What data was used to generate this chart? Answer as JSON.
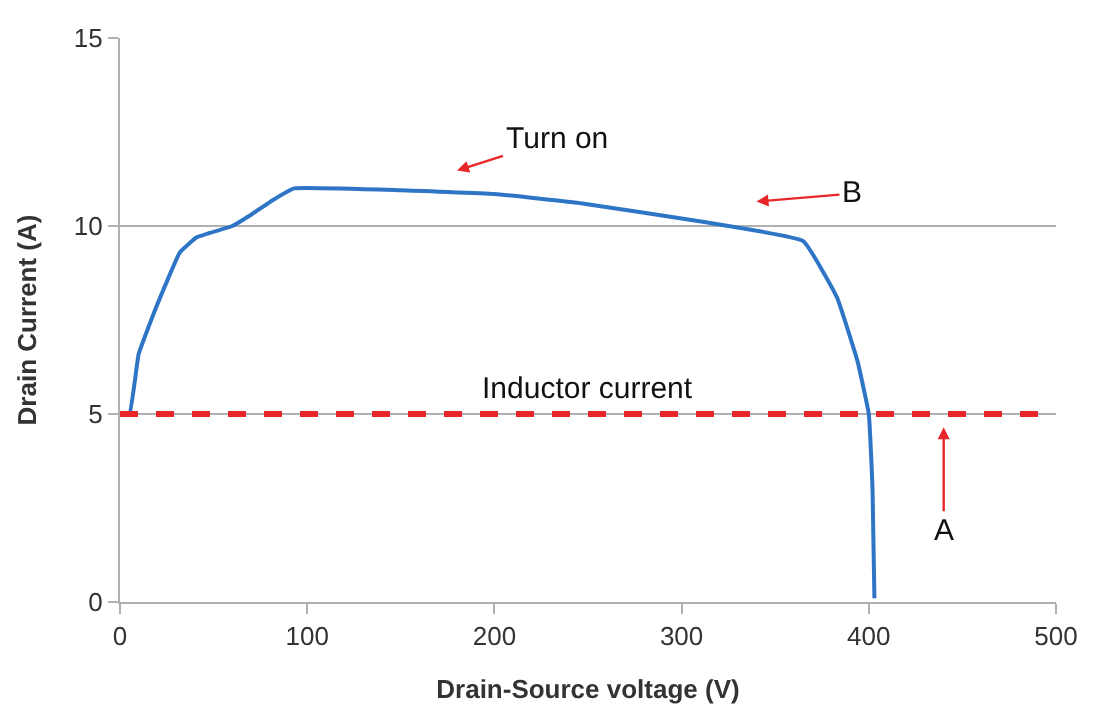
{
  "chart_data": {
    "type": "line",
    "xlabel": "Drain-Source voltage (V)",
    "ylabel": "Drain Current (A)",
    "x": [
      0,
      5,
      10,
      19,
      32,
      41,
      60,
      70,
      82,
      93,
      150,
      200,
      247,
      313,
      365,
      383,
      394,
      400,
      402,
      403
    ],
    "series": [
      {
        "color": "#2e75c6",
        "values": [
          5.0,
          5.0,
          6.6,
          7.8,
          9.3,
          9.7,
          10.0,
          10.3,
          10.7,
          11.0,
          10.95,
          10.85,
          10.6,
          10.1,
          9.6,
          8.1,
          6.4,
          5.0,
          3.0,
          0.1
        ]
      }
    ],
    "xlim": [
      0,
      500
    ],
    "xticks": [
      0,
      100,
      200,
      300,
      400,
      500
    ],
    "ylim": [
      0,
      15
    ],
    "yticks": [
      0,
      5,
      10,
      15
    ],
    "grid": "y",
    "ref_lines": [
      {
        "axis": "y",
        "value": 5,
        "label": "Inductor current",
        "color": "#e8262a",
        "line_style": "dashed"
      }
    ],
    "annotations": [
      "Turn on",
      "B",
      "A"
    ]
  }
}
